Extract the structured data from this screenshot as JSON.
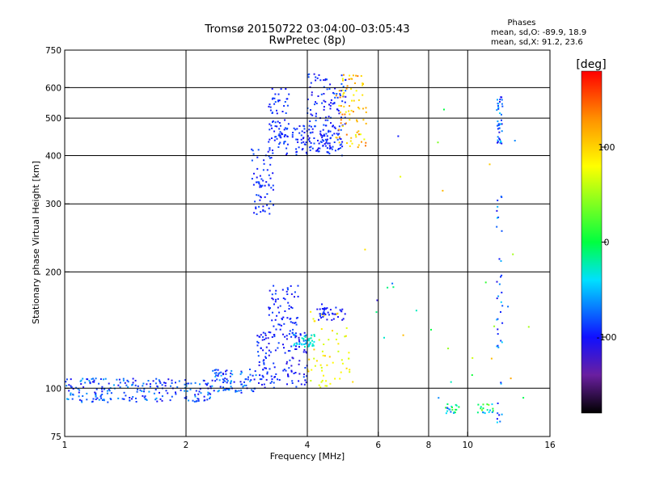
{
  "chart_data": {
    "type": "scatter",
    "title": "Tromsø 20150722 03:04:00–03:05:43",
    "subtitle": "RwPretec (8p)",
    "xlabel": "Frequency [MHz]",
    "ylabel": "Stationary phase Virtual Height [km]",
    "x_scale": "log",
    "y_scale": "log",
    "xlim": [
      1,
      16
    ],
    "ylim": [
      75,
      750
    ],
    "x_ticks": [
      1,
      2,
      4,
      6,
      8,
      10,
      16
    ],
    "y_ticks": [
      75,
      100,
      200,
      300,
      400,
      500,
      600,
      750
    ],
    "x_tick_labels": [
      "1",
      "2",
      "4",
      "6",
      "8",
      "10",
      "16"
    ],
    "y_tick_labels": [
      "75",
      "100",
      "200",
      "300",
      "400",
      "500",
      "600",
      "750"
    ],
    "grid": true,
    "stats": {
      "heading": "Phases",
      "o_line": "mean, sd,O: -89.9, 18.9",
      "x_line": "mean, sd,X:  91.2, 23.6"
    },
    "colorbar": {
      "label": "[deg]",
      "range": [
        -180,
        180
      ],
      "ticks": [
        100,
        0,
        -100
      ],
      "tick_labels": [
        "100",
        "0",
        "-100"
      ],
      "stops": [
        {
          "v": -180,
          "color": "#000000"
        },
        {
          "v": -140,
          "color": "#6a1fa0"
        },
        {
          "v": -100,
          "color": "#1010ff"
        },
        {
          "v": -40,
          "color": "#00e0ff"
        },
        {
          "v": 0,
          "color": "#00ff40"
        },
        {
          "v": 80,
          "color": "#ffff00"
        },
        {
          "v": 130,
          "color": "#ff9000"
        },
        {
          "v": 180,
          "color": "#ff0000"
        }
      ]
    },
    "clusters": [
      {
        "n": 220,
        "x": [
          1.0,
          2.3
        ],
        "y": [
          92,
          106
        ],
        "phase": [
          -110,
          -55
        ]
      },
      {
        "n": 90,
        "x": [
          2.3,
          3.0
        ],
        "y": [
          97,
          112
        ],
        "phase": [
          -110,
          -50
        ]
      },
      {
        "n": 140,
        "x": [
          3.0,
          4.0
        ],
        "y": [
          100,
          140
        ],
        "phase": [
          -115,
          -80
        ]
      },
      {
        "n": 70,
        "x": [
          3.2,
          3.8
        ],
        "y": [
          135,
          185
        ],
        "phase": [
          -110,
          -80
        ]
      },
      {
        "n": 60,
        "x": [
          4.0,
          5.2
        ],
        "y": [
          100,
          160
        ],
        "phase": [
          60,
          110
        ]
      },
      {
        "n": 40,
        "x": [
          3.7,
          4.2
        ],
        "y": [
          128,
          138
        ],
        "phase": [
          -50,
          -20
        ]
      },
      {
        "n": 40,
        "x": [
          4.2,
          5.0
        ],
        "y": [
          150,
          165
        ],
        "phase": [
          -110,
          -85
        ]
      },
      {
        "n": 70,
        "x": [
          2.9,
          3.3
        ],
        "y": [
          280,
          420
        ],
        "phase": [
          -105,
          -80
        ]
      },
      {
        "n": 70,
        "x": [
          3.2,
          3.6
        ],
        "y": [
          420,
          600
        ],
        "phase": [
          -105,
          -80
        ]
      },
      {
        "n": 140,
        "x": [
          3.5,
          4.9
        ],
        "y": [
          400,
          480
        ],
        "phase": [
          -110,
          -80
        ]
      },
      {
        "n": 90,
        "x": [
          4.0,
          5.0
        ],
        "y": [
          470,
          650
        ],
        "phase": [
          -110,
          -75
        ]
      },
      {
        "n": 80,
        "x": [
          4.7,
          5.6
        ],
        "y": [
          420,
          650
        ],
        "phase": [
          70,
          140
        ]
      },
      {
        "n": 40,
        "x": [
          11.8,
          12.2
        ],
        "y": [
          430,
          570
        ],
        "phase": [
          -110,
          -40
        ]
      },
      {
        "n": 40,
        "x": [
          11.8,
          12.2
        ],
        "y": [
          80,
          340
        ],
        "phase": [
          -110,
          -40
        ]
      },
      {
        "n": 20,
        "x": [
          8.8,
          9.6
        ],
        "y": [
          86,
          91
        ],
        "phase": [
          -80,
          20
        ]
      },
      {
        "n": 20,
        "x": [
          10.6,
          11.6
        ],
        "y": [
          86,
          91
        ],
        "phase": [
          -80,
          40
        ]
      },
      {
        "n": 30,
        "x": [
          5.5,
          14.5
        ],
        "y": [
          76,
          560
        ],
        "phase": [
          -120,
          140
        ]
      }
    ]
  }
}
